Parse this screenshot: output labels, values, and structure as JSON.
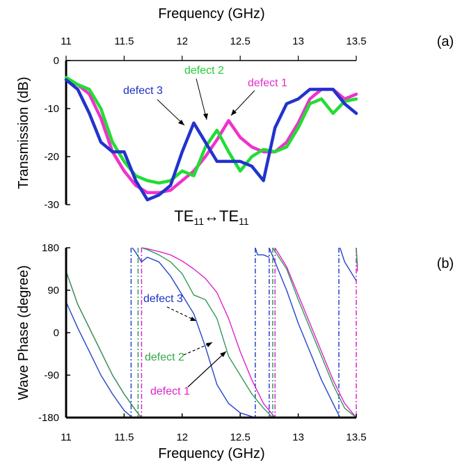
{
  "chart_data": [
    {
      "type": "line",
      "panel_label": "(a)",
      "title": "Frequency (GHz)",
      "xlabel": "Frequency (GHz)",
      "ylabel": "Transmission (dB)",
      "xlim": [
        11,
        13.5
      ],
      "ylim": [
        -30,
        0
      ],
      "xticks": [
        "11",
        "11.5",
        "12",
        "12.5",
        "13",
        "13.5"
      ],
      "yticks": [
        "0",
        "-10",
        "-20",
        "-30"
      ],
      "mode_label": {
        "pre": "TE",
        "sub1": "11",
        "arrow": "↔",
        "post": "TE",
        "sub2": "11"
      },
      "series": [
        {
          "name": "defect 1",
          "color": "#ee33cc",
          "x": [
            11.0,
            11.1,
            11.2,
            11.3,
            11.4,
            11.5,
            11.6,
            11.7,
            11.8,
            11.9,
            12.0,
            12.1,
            12.2,
            12.3,
            12.4,
            12.5,
            12.6,
            12.7,
            12.8,
            12.9,
            13.0,
            13.1,
            13.2,
            13.3,
            13.4,
            13.5
          ],
          "y": [
            -4,
            -5,
            -7,
            -12,
            -19,
            -23,
            -26,
            -27.5,
            -27.5,
            -27,
            -25,
            -23,
            -20,
            -16.5,
            -12.5,
            -16,
            -18,
            -19,
            -19,
            -17,
            -13,
            -8,
            -6,
            -6,
            -8,
            -7
          ]
        },
        {
          "name": "defect 2",
          "color": "#22dd33",
          "x": [
            11.0,
            11.1,
            11.2,
            11.3,
            11.4,
            11.5,
            11.6,
            11.7,
            11.8,
            11.9,
            12.0,
            12.1,
            12.2,
            12.3,
            12.4,
            12.5,
            12.6,
            12.7,
            12.8,
            12.9,
            13.0,
            13.1,
            13.2,
            13.3,
            13.4,
            13.5
          ],
          "y": [
            -3.5,
            -5,
            -6,
            -10,
            -17,
            -21,
            -24,
            -25,
            -25.5,
            -25,
            -23,
            -24,
            -18,
            -14.5,
            -19,
            -23,
            -20,
            -18.5,
            -19,
            -18,
            -14,
            -9,
            -8,
            -11,
            -8.5,
            -8
          ]
        },
        {
          "name": "defect 3",
          "color": "#2233cc",
          "x": [
            11.0,
            11.1,
            11.2,
            11.3,
            11.4,
            11.5,
            11.6,
            11.7,
            11.8,
            11.9,
            12.0,
            12.1,
            12.2,
            12.3,
            12.4,
            12.5,
            12.6,
            12.7,
            12.8,
            12.9,
            13.0,
            13.1,
            13.2,
            13.3,
            13.4,
            13.5
          ],
          "y": [
            -4,
            -6,
            -11,
            -17,
            -19,
            -19,
            -25,
            -29,
            -28,
            -26,
            -19,
            -13,
            -17,
            -21,
            -21,
            -21,
            -22,
            -25,
            -14,
            -9,
            -8,
            -6,
            -6,
            -6,
            -9,
            -11
          ]
        }
      ],
      "annotations": [
        "defect 1",
        "defect 2",
        "defect 3"
      ]
    },
    {
      "type": "line",
      "panel_label": "(b)",
      "xlabel": "Frequency (GHz)",
      "ylabel": "Wave Phase (degree)",
      "xlim": [
        11,
        13.5
      ],
      "ylim": [
        -180,
        180
      ],
      "xticks": [
        "11",
        "11.5",
        "12",
        "12.5",
        "13",
        "13.5"
      ],
      "yticks": [
        "180",
        "90",
        "0",
        "-90",
        "-180"
      ],
      "series": [
        {
          "name": "defect 1",
          "color": "#dd22cc",
          "x": [
            11.0,
            11.1,
            11.2,
            11.3,
            11.4,
            11.5,
            11.6,
            11.65,
            11.65,
            11.7,
            11.8,
            11.9,
            12.0,
            12.1,
            12.2,
            12.3,
            12.4,
            12.5,
            12.6,
            12.7,
            12.8,
            12.8,
            12.9,
            13.0,
            13.1,
            13.2,
            13.3,
            13.4,
            13.5,
            13.5,
            13.51
          ],
          "y": [
            130,
            60,
            10,
            -40,
            -90,
            -130,
            -165,
            -180,
            180,
            178,
            172,
            165,
            152,
            135,
            115,
            85,
            30,
            -40,
            -100,
            -150,
            -180,
            180,
            140,
            80,
            20,
            -40,
            -100,
            -150,
            -180,
            180,
            130
          ]
        },
        {
          "name": "defect 2",
          "color": "#339955",
          "x": [
            11.0,
            11.1,
            11.2,
            11.3,
            11.4,
            11.5,
            11.6,
            11.65,
            11.65,
            11.7,
            11.8,
            11.9,
            12.0,
            12.1,
            12.2,
            12.3,
            12.4,
            12.5,
            12.6,
            12.7,
            12.78,
            12.78,
            12.9,
            13.0,
            13.1,
            13.2,
            13.3,
            13.4,
            13.5,
            13.5,
            13.51
          ],
          "y": [
            130,
            60,
            10,
            -40,
            -90,
            -130,
            -165,
            -180,
            180,
            176,
            165,
            150,
            125,
            80,
            70,
            30,
            -50,
            -90,
            -130,
            -160,
            -180,
            180,
            135,
            70,
            10,
            -50,
            -110,
            -160,
            -180,
            180,
            140
          ]
        },
        {
          "name": "defect 3",
          "color": "#2244cc",
          "x": [
            11.0,
            11.1,
            11.2,
            11.3,
            11.4,
            11.5,
            11.57,
            11.57,
            11.6,
            11.65,
            11.7,
            11.8,
            11.9,
            12.0,
            12.1,
            12.2,
            12.3,
            12.4,
            12.5,
            12.6,
            12.63,
            12.63,
            12.65,
            12.7,
            12.75,
            12.75,
            12.8,
            12.9,
            13.0,
            13.1,
            13.2,
            13.3,
            13.36,
            13.36,
            13.4,
            13.5
          ],
          "y": [
            65,
            10,
            -40,
            -90,
            -130,
            -165,
            -180,
            180,
            170,
            150,
            160,
            150,
            120,
            80,
            40,
            -30,
            -110,
            -150,
            -170,
            -178,
            -180,
            180,
            165,
            165,
            160,
            180,
            150,
            90,
            20,
            -40,
            -100,
            -150,
            -180,
            180,
            150,
            110
          ]
        }
      ],
      "phase_jumps": [
        {
          "color": "#2244cc",
          "x": [
            11.56,
            12.63,
            12.75,
            13.35
          ]
        },
        {
          "color": "#339955",
          "x": [
            11.62,
            12.78
          ]
        },
        {
          "color": "#dd22cc",
          "x": [
            11.65,
            12.8,
            13.5
          ]
        }
      ],
      "annotations": [
        "defect 3",
        "defect 2",
        "defect 1"
      ]
    }
  ]
}
